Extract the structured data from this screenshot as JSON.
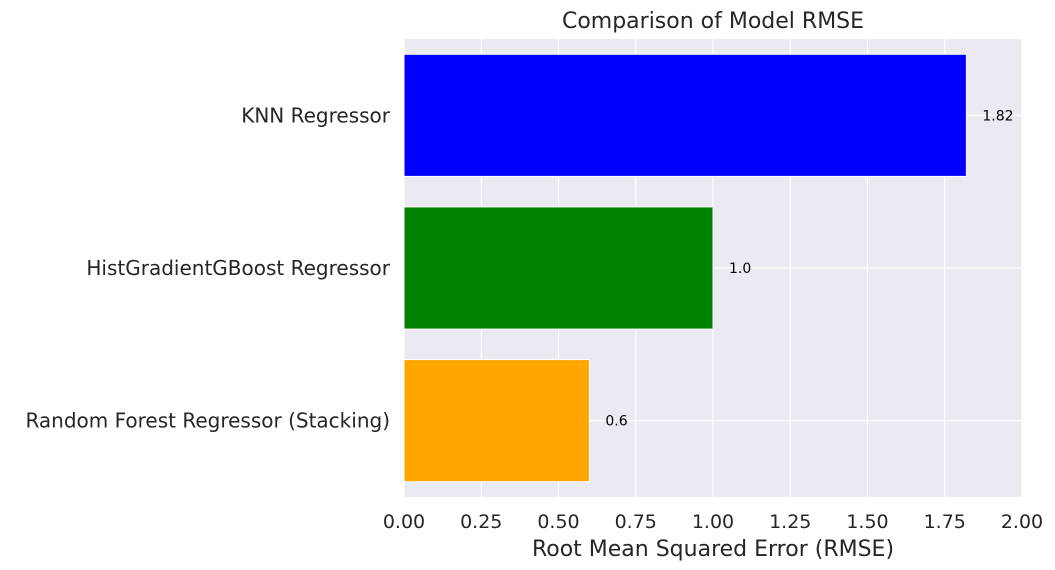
{
  "chart_data": {
    "type": "bar",
    "orientation": "horizontal",
    "title": "Comparison of Model RMSE",
    "xlabel": "Root Mean Squared Error (RMSE)",
    "ylabel": "",
    "categories": [
      "Random Forest Regressor (Stacking)",
      "HistGradientGBoost Regressor",
      "KNN Regressor"
    ],
    "values": [
      0.6,
      1.0,
      1.82
    ],
    "data_labels": [
      "0.6",
      "1.0",
      "1.82"
    ],
    "bar_colors": [
      "#ffa500",
      "#008000",
      "#0000ff"
    ],
    "xlim": [
      0,
      2.0
    ],
    "xticks": [
      "0.00",
      "0.25",
      "0.50",
      "0.75",
      "1.00",
      "1.25",
      "1.50",
      "1.75",
      "2.00"
    ],
    "grid": true,
    "background": "#eaeaf2"
  }
}
